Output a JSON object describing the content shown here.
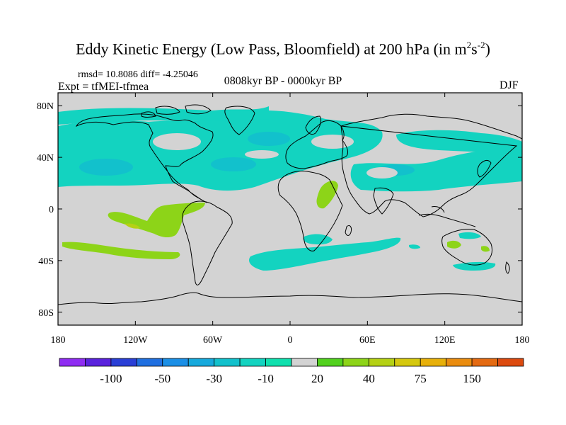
{
  "title": {
    "main": "Eddy Kinetic Energy (Low Pass, Bloomfield) at 200 hPa (in m",
    "sup1": "2",
    "mid": "s",
    "sup2": "-2",
    "end": ")"
  },
  "stats": "rmsd= 10.8086 diff= -4.25046",
  "expt": "Expt = tfMEI-tfmea",
  "period": "0808kyr BP - 0000kyr BP",
  "season": "DJF",
  "map": {
    "land_fill": "#d3d3d3",
    "lat_ticks": [
      {
        "label": "80N",
        "lat": 80
      },
      {
        "label": "40N",
        "lat": 40
      },
      {
        "label": "0",
        "lat": 0
      },
      {
        "label": "40S",
        "lat": -40
      },
      {
        "label": "80S",
        "lat": -80
      }
    ],
    "lon_ticks": [
      {
        "label": "180",
        "lon": -180
      },
      {
        "label": "120W",
        "lon": -120
      },
      {
        "label": "60W",
        "lon": -60
      },
      {
        "label": "0",
        "lon": 0
      },
      {
        "label": "60E",
        "lon": 60
      },
      {
        "label": "120E",
        "lon": 120
      },
      {
        "label": "180",
        "lon": 180
      }
    ]
  },
  "colorbar": {
    "colors": [
      "#8f2cf2",
      "#5a22dd",
      "#2a3fd6",
      "#1f6fe0",
      "#1b8fe6",
      "#16a9dc",
      "#12c1cc",
      "#13d3c0",
      "#10e0ae",
      "#d3d3d3",
      "#52d11e",
      "#8dd418",
      "#b5d114",
      "#d5c80e",
      "#e7b00a",
      "#ea8c0f",
      "#e46a12",
      "#dc4a0f"
    ],
    "labels": [
      {
        "text": "-100",
        "boundary": 2
      },
      {
        "text": "-50",
        "boundary": 4
      },
      {
        "text": "-30",
        "boundary": 6
      },
      {
        "text": "-10",
        "boundary": 8
      },
      {
        "text": "20",
        "boundary": 10
      },
      {
        "text": "40",
        "boundary": 12
      },
      {
        "text": "75",
        "boundary": 14
      },
      {
        "text": "150",
        "boundary": 16
      }
    ]
  }
}
